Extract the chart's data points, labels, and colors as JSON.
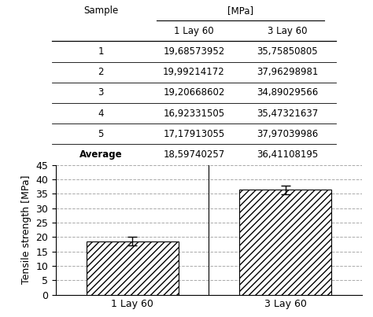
{
  "table": {
    "rows": [
      [
        "1",
        "19,68573952",
        "35,75850805"
      ],
      [
        "2",
        "19,99214172",
        "37,96298981"
      ],
      [
        "3",
        "19,20668602",
        "34,89029566"
      ],
      [
        "4",
        "16,92331505",
        "35,47321637"
      ],
      [
        "5",
        "17,17913055",
        "37,97039986"
      ],
      [
        "Average",
        "18,59740257",
        "36,41108195"
      ]
    ]
  },
  "bar_labels": [
    "1 Lay 60",
    "3 Lay 60"
  ],
  "bar_values": [
    18.59740257,
    36.41108195
  ],
  "bar_errors": [
    1.4,
    1.5
  ],
  "bar_color": "#ffffff",
  "bar_edgecolor": "#000000",
  "hatch": "////",
  "ylabel": "Tensile strength [MPa]",
  "ylim": [
    0,
    45
  ],
  "yticks": [
    0,
    5,
    10,
    15,
    20,
    25,
    30,
    35,
    40,
    45
  ],
  "grid_color": "#aaaaaa",
  "grid_style": "--",
  "figure_bg": "#ffffff",
  "font_color": "#000000",
  "table_fontsize": 8.5,
  "axis_fontsize": 9
}
